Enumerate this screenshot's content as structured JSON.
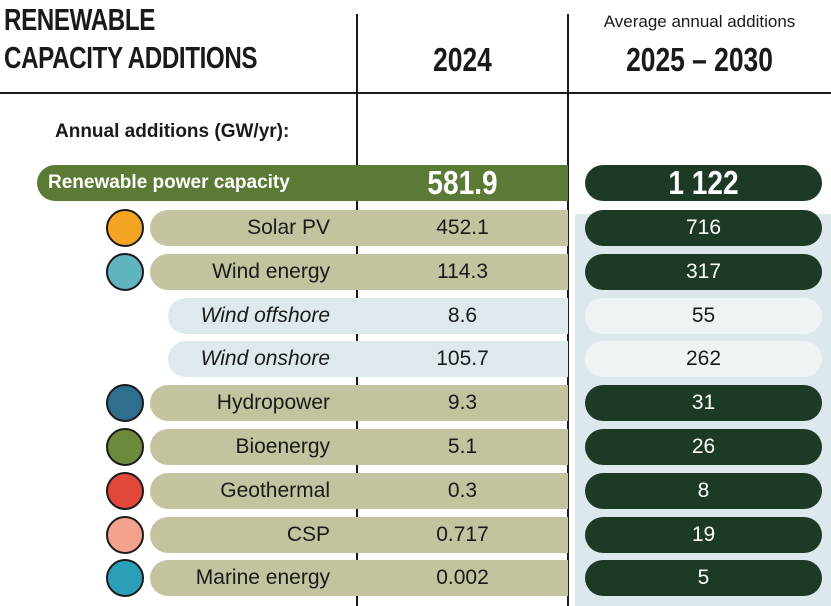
{
  "header": {
    "title_lines": [
      "RENEWABLE",
      "CAPACITY ADDITIONS"
    ],
    "columns": [
      {
        "label": "2024"
      },
      {
        "label": "2025 – 2030",
        "note": "Average annual additions"
      }
    ]
  },
  "unit_label": "Annual additions (GW/yr):",
  "total": {
    "label": "Renewable power capacity",
    "values": [
      "581.9",
      "1 122"
    ]
  },
  "rows": [
    {
      "label": "Solar PV",
      "values": [
        "452.1",
        "716"
      ]
    },
    {
      "label": "Wind energy",
      "values": [
        "114.3",
        "317"
      ],
      "children": [
        {
          "label": "Wind offshore",
          "values": [
            "8.6",
            "55"
          ]
        },
        {
          "label": "Wind onshore",
          "values": [
            "105.7",
            "262"
          ]
        }
      ]
    },
    {
      "label": "Hydropower",
      "values": [
        "9.3",
        "31"
      ]
    },
    {
      "label": "Bioenergy",
      "values": [
        "5.1",
        "26"
      ]
    },
    {
      "label": "Geothermal",
      "values": [
        "0.3",
        "8"
      ]
    },
    {
      "label": "CSP",
      "values": [
        "0.717",
        "19"
      ]
    },
    {
      "label": "Marine energy",
      "values": [
        "0.002",
        "5"
      ]
    }
  ]
}
